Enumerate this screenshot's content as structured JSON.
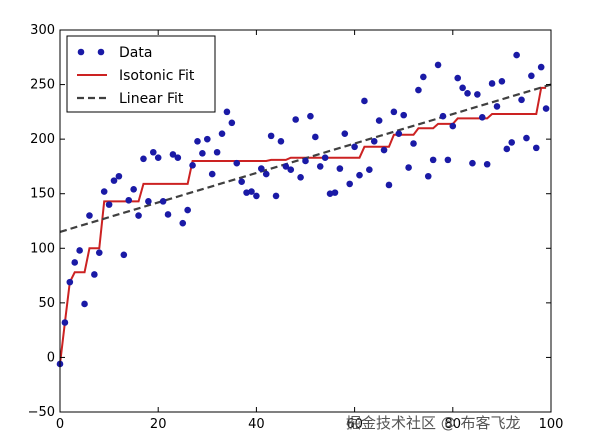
{
  "chart_data": {
    "type": "scatter",
    "xlim": [
      0,
      100
    ],
    "ylim": [
      -50,
      300
    ],
    "x_ticks": [
      0,
      20,
      40,
      60,
      80,
      100
    ],
    "y_ticks": [
      -50,
      0,
      50,
      100,
      150,
      200,
      250,
      300
    ],
    "grid": false,
    "legend_position": "top-left",
    "series": [
      {
        "name": "Data",
        "kind": "scatter",
        "color": "#1a1aa6",
        "points": [
          [
            0,
            -6
          ],
          [
            1,
            32
          ],
          [
            2,
            69
          ],
          [
            3,
            87
          ],
          [
            4,
            98
          ],
          [
            5,
            49
          ],
          [
            6,
            130
          ],
          [
            7,
            76
          ],
          [
            8,
            96
          ],
          [
            9,
            152
          ],
          [
            10,
            140
          ],
          [
            11,
            162
          ],
          [
            12,
            166
          ],
          [
            13,
            94
          ],
          [
            14,
            144
          ],
          [
            15,
            154
          ],
          [
            16,
            130
          ],
          [
            17,
            182
          ],
          [
            18,
            143
          ],
          [
            19,
            188
          ],
          [
            20,
            183
          ],
          [
            21,
            143
          ],
          [
            22,
            131
          ],
          [
            23,
            186
          ],
          [
            24,
            183
          ],
          [
            25,
            123
          ],
          [
            26,
            135
          ],
          [
            27,
            176
          ],
          [
            28,
            198
          ],
          [
            29,
            187
          ],
          [
            30,
            200
          ],
          [
            31,
            168
          ],
          [
            32,
            188
          ],
          [
            33,
            205
          ],
          [
            34,
            225
          ],
          [
            35,
            215
          ],
          [
            36,
            178
          ],
          [
            37,
            161
          ],
          [
            38,
            151
          ],
          [
            39,
            152
          ],
          [
            40,
            148
          ],
          [
            41,
            173
          ],
          [
            42,
            168
          ],
          [
            43,
            203
          ],
          [
            44,
            148
          ],
          [
            45,
            198
          ],
          [
            46,
            175
          ],
          [
            47,
            172
          ],
          [
            48,
            218
          ],
          [
            49,
            165
          ],
          [
            50,
            180
          ],
          [
            51,
            221
          ],
          [
            52,
            202
          ],
          [
            53,
            175
          ],
          [
            54,
            183
          ],
          [
            55,
            150
          ],
          [
            56,
            151
          ],
          [
            57,
            173
          ],
          [
            58,
            205
          ],
          [
            59,
            159
          ],
          [
            60,
            193
          ],
          [
            61,
            167
          ],
          [
            62,
            235
          ],
          [
            63,
            172
          ],
          [
            64,
            198
          ],
          [
            65,
            217
          ],
          [
            66,
            190
          ],
          [
            67,
            158
          ],
          [
            68,
            225
          ],
          [
            69,
            205
          ],
          [
            70,
            222
          ],
          [
            71,
            174
          ],
          [
            72,
            196
          ],
          [
            73,
            245
          ],
          [
            74,
            257
          ],
          [
            75,
            166
          ],
          [
            76,
            181
          ],
          [
            77,
            268
          ],
          [
            78,
            221
          ],
          [
            79,
            181
          ],
          [
            80,
            212
          ],
          [
            81,
            256
          ],
          [
            82,
            247
          ],
          [
            83,
            242
          ],
          [
            84,
            178
          ],
          [
            85,
            241
          ],
          [
            86,
            220
          ],
          [
            87,
            177
          ],
          [
            88,
            251
          ],
          [
            89,
            230
          ],
          [
            90,
            253
          ],
          [
            91,
            191
          ],
          [
            92,
            197
          ],
          [
            93,
            277
          ],
          [
            94,
            236
          ],
          [
            95,
            201
          ],
          [
            96,
            258
          ],
          [
            97,
            192
          ],
          [
            98,
            266
          ],
          [
            99,
            228
          ]
        ]
      },
      {
        "name": "Isotonic Fit",
        "kind": "step-line",
        "color": "#cc2222",
        "points": [
          [
            0,
            -6
          ],
          [
            1,
            32
          ],
          [
            2,
            69
          ],
          [
            3,
            78
          ],
          [
            4,
            78
          ],
          [
            5,
            78
          ],
          [
            6,
            100
          ],
          [
            7,
            100
          ],
          [
            8,
            100
          ],
          [
            9,
            143
          ],
          [
            10,
            143
          ],
          [
            11,
            143
          ],
          [
            12,
            143
          ],
          [
            13,
            143
          ],
          [
            14,
            143
          ],
          [
            15,
            143
          ],
          [
            16,
            143
          ],
          [
            17,
            159
          ],
          [
            18,
            159
          ],
          [
            19,
            159
          ],
          [
            20,
            159
          ],
          [
            21,
            159
          ],
          [
            22,
            159
          ],
          [
            23,
            159
          ],
          [
            24,
            159
          ],
          [
            25,
            159
          ],
          [
            26,
            159
          ],
          [
            27,
            180
          ],
          [
            28,
            180
          ],
          [
            29,
            180
          ],
          [
            30,
            180
          ],
          [
            31,
            180
          ],
          [
            32,
            180
          ],
          [
            33,
            180
          ],
          [
            34,
            180
          ],
          [
            35,
            180
          ],
          [
            36,
            180
          ],
          [
            37,
            180
          ],
          [
            38,
            180
          ],
          [
            39,
            180
          ],
          [
            40,
            180
          ],
          [
            41,
            180
          ],
          [
            42,
            180
          ],
          [
            43,
            181
          ],
          [
            44,
            181
          ],
          [
            45,
            181
          ],
          [
            46,
            181
          ],
          [
            47,
            183
          ],
          [
            48,
            183
          ],
          [
            49,
            183
          ],
          [
            50,
            183
          ],
          [
            51,
            183
          ],
          [
            52,
            183
          ],
          [
            53,
            183
          ],
          [
            54,
            183
          ],
          [
            55,
            183
          ],
          [
            56,
            183
          ],
          [
            57,
            183
          ],
          [
            58,
            183
          ],
          [
            59,
            183
          ],
          [
            60,
            183
          ],
          [
            61,
            183
          ],
          [
            62,
            193
          ],
          [
            63,
            193
          ],
          [
            64,
            193
          ],
          [
            65,
            193
          ],
          [
            66,
            193
          ],
          [
            67,
            193
          ],
          [
            68,
            204
          ],
          [
            69,
            204
          ],
          [
            70,
            204
          ],
          [
            71,
            204
          ],
          [
            72,
            204
          ],
          [
            73,
            210
          ],
          [
            74,
            210
          ],
          [
            75,
            210
          ],
          [
            76,
            210
          ],
          [
            77,
            214
          ],
          [
            78,
            214
          ],
          [
            79,
            214
          ],
          [
            80,
            214
          ],
          [
            81,
            219
          ],
          [
            82,
            219
          ],
          [
            83,
            219
          ],
          [
            84,
            219
          ],
          [
            85,
            219
          ],
          [
            86,
            219
          ],
          [
            87,
            219
          ],
          [
            88,
            223
          ],
          [
            89,
            223
          ],
          [
            90,
            223
          ],
          [
            91,
            223
          ],
          [
            92,
            223
          ],
          [
            93,
            223
          ],
          [
            94,
            223
          ],
          [
            95,
            223
          ],
          [
            96,
            223
          ],
          [
            97,
            223
          ],
          [
            98,
            247
          ],
          [
            99,
            247
          ]
        ]
      },
      {
        "name": "Linear Fit",
        "kind": "dashed-line",
        "color": "#404040",
        "points": [
          [
            0,
            115
          ],
          [
            100,
            250
          ]
        ]
      }
    ]
  },
  "watermark": "掘金技术社区 @ 布客飞龙"
}
